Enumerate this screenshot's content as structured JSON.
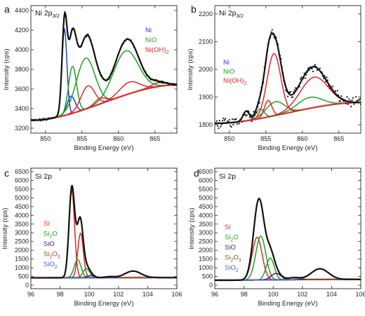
{
  "colors": {
    "Ni": "#1f3fbf",
    "NiO": "#22a022",
    "Ni(OH)2": "#e0262a",
    "Si": "#e0262a",
    "Si2O": "#22a022",
    "SiO": "#3a1c6b",
    "Si2O3": "#8b4a26",
    "SiO2": "#3a63c8",
    "envelope": "#111111",
    "background": "#f2a0a0",
    "data_points": "#111111"
  },
  "chart_data": [
    {
      "panel_label": "a",
      "title_base": "Ni 2p",
      "title_sub": "3/2",
      "type": "line",
      "xlabel": "Binding Energy (eV)",
      "ylabel": "Intensity (cps)",
      "xlim": [
        848,
        868
      ],
      "ylim": [
        3150,
        4450
      ],
      "x_ticks": [
        "850",
        "855",
        "860",
        "865"
      ],
      "y_ticks": [
        "3200",
        "3400",
        "3600",
        "3800",
        "4000",
        "4200",
        "4400"
      ],
      "legend": [
        "Ni",
        "NiO",
        "Ni(OH)2"
      ],
      "legend_labels": [
        {
          "text": "Ni",
          "sub": "",
          "color_key": "Ni"
        },
        {
          "text": "NiO",
          "sub": "",
          "color_key": "NiO"
        },
        {
          "text": "Ni(OH)",
          "sub": "2",
          "color_key": "Ni(OH)2"
        }
      ],
      "legend_position": "top-right",
      "background": {
        "start": 3280,
        "end": 3640
      },
      "components": [
        {
          "name": "Ni",
          "color_key": "Ni",
          "center": 852.6,
          "fwhm": 0.8,
          "height": 880
        },
        {
          "name": "Ni",
          "color_key": "Ni",
          "center": 853.5,
          "fwhm": 1.3,
          "height": 180
        },
        {
          "name": "NiO",
          "color_key": "NiO",
          "center": 853.7,
          "fwhm": 1.3,
          "height": 480
        },
        {
          "name": "NiO",
          "color_key": "NiO",
          "center": 855.5,
          "fwhm": 3.0,
          "height": 520
        },
        {
          "name": "NiO",
          "color_key": "NiO",
          "center": 861.0,
          "fwhm": 4.0,
          "height": 450
        },
        {
          "name": "Ni(OH)2",
          "color_key": "Ni(OH)2",
          "center": 855.8,
          "fwhm": 2.2,
          "height": 230
        },
        {
          "name": "Ni(OH)2",
          "color_key": "Ni(OH)2",
          "center": 857.5,
          "fwhm": 1.8,
          "height": 60
        },
        {
          "name": "Ni(OH)2",
          "color_key": "Ni(OH)2",
          "center": 861.5,
          "fwhm": 3.2,
          "height": 120
        },
        {
          "name": "Ni(OH)2",
          "color_key": "Ni(OH)2",
          "center": 865.5,
          "fwhm": 2.5,
          "height": 40
        }
      ],
      "data_points": [
        {
          "x": 849.0,
          "y": 3300
        },
        {
          "x": 850.0,
          "y": 3330
        },
        {
          "x": 851.0,
          "y": 3390
        },
        {
          "x": 852.0,
          "y": 3760
        },
        {
          "x": 852.6,
          "y": 4280
        },
        {
          "x": 853.3,
          "y": 3900
        },
        {
          "x": 854.0,
          "y": 4120
        },
        {
          "x": 854.5,
          "y": 4140
        },
        {
          "x": 855.0,
          "y": 4080
        },
        {
          "x": 856.0,
          "y": 4100
        },
        {
          "x": 857.0,
          "y": 3930
        },
        {
          "x": 858.0,
          "y": 3790
        },
        {
          "x": 859.0,
          "y": 3820
        },
        {
          "x": 860.0,
          "y": 3890
        },
        {
          "x": 861.0,
          "y": 3940
        },
        {
          "x": 862.0,
          "y": 3900
        },
        {
          "x": 863.0,
          "y": 3790
        },
        {
          "x": 864.0,
          "y": 3700
        },
        {
          "x": 865.0,
          "y": 3680
        },
        {
          "x": 866.0,
          "y": 3660
        },
        {
          "x": 867.5,
          "y": 3650
        }
      ],
      "noise": 10,
      "series_names_shown": true
    },
    {
      "panel_label": "b",
      "title_base": "Ni 2p",
      "title_sub": "3/2",
      "type": "line",
      "xlabel": "Binding Energy (eV)",
      "ylabel": "Intensity (cps)",
      "xlim": [
        848,
        868
      ],
      "ylim": [
        1770,
        2230
      ],
      "x_ticks": [
        "850",
        "855",
        "860",
        "865"
      ],
      "y_ticks": [
        "1800",
        "1900",
        "2000",
        "2100",
        "2200"
      ],
      "legend": [
        "Ni",
        "NiO",
        "Ni(OH)2"
      ],
      "legend_labels": [
        {
          "text": "Ni",
          "sub": "",
          "color_key": "Ni"
        },
        {
          "text": "NiO",
          "sub": "",
          "color_key": "NiO"
        },
        {
          "text": "Ni(OH)",
          "sub": "2",
          "color_key": "Ni(OH)2"
        }
      ],
      "legend_position": "middle-left",
      "background": {
        "start": 1805,
        "end": 1880
      },
      "components": [
        {
          "name": "Ni",
          "color_key": "Ni",
          "center": 852.3,
          "fwhm": 1.0,
          "height": 35
        },
        {
          "name": "NiO",
          "color_key": "NiO",
          "center": 854.2,
          "fwhm": 1.3,
          "height": 35
        },
        {
          "name": "NiO",
          "color_key": "NiO",
          "center": 856.3,
          "fwhm": 3.0,
          "height": 50
        },
        {
          "name": "NiO",
          "color_key": "NiO",
          "center": 861.0,
          "fwhm": 4.0,
          "height": 40
        },
        {
          "name": "Ni(OH)2",
          "color_key": "Ni(OH)2",
          "center": 855.3,
          "fwhm": 1.2,
          "height": 60
        },
        {
          "name": "Ni(OH)2",
          "color_key": "Ni(OH)2",
          "center": 856.1,
          "fwhm": 2.2,
          "height": 225
        },
        {
          "name": "Ni(OH)2",
          "color_key": "Ni(OH)2",
          "center": 861.6,
          "fwhm": 4.5,
          "height": 110
        }
      ],
      "data_points": [
        {
          "x": 849.0,
          "y": 1808
        },
        {
          "x": 850.0,
          "y": 1818
        },
        {
          "x": 851.0,
          "y": 1832
        },
        {
          "x": 852.0,
          "y": 1842
        },
        {
          "x": 853.0,
          "y": 1838
        },
        {
          "x": 854.0,
          "y": 1870
        },
        {
          "x": 855.0,
          "y": 1960
        },
        {
          "x": 855.5,
          "y": 2080
        },
        {
          "x": 856.0,
          "y": 2130
        },
        {
          "x": 856.8,
          "y": 2060
        },
        {
          "x": 857.5,
          "y": 1960
        },
        {
          "x": 858.5,
          "y": 1930
        },
        {
          "x": 859.5,
          "y": 1950
        },
        {
          "x": 860.5,
          "y": 1980
        },
        {
          "x": 861.5,
          "y": 1990
        },
        {
          "x": 862.5,
          "y": 1970
        },
        {
          "x": 863.5,
          "y": 1935
        },
        {
          "x": 864.5,
          "y": 1910
        },
        {
          "x": 865.5,
          "y": 1895
        },
        {
          "x": 866.5,
          "y": 1888
        },
        {
          "x": 867.5,
          "y": 1885
        }
      ],
      "noise": 14,
      "series_names_shown": true
    },
    {
      "panel_label": "c",
      "title_base": "Si 2p",
      "title_sub": "",
      "type": "line",
      "xlabel": "Binding Energy (eV)",
      "ylabel": "Intensity (cps)",
      "xlim": [
        96,
        106
      ],
      "ylim": [
        -200,
        6700
      ],
      "x_ticks": [
        "96",
        "98",
        "100",
        "102",
        "104",
        "106"
      ],
      "y_ticks": [
        "0",
        "500",
        "1000",
        "1500",
        "2000",
        "2500",
        "3000",
        "3500",
        "4000",
        "4500",
        "5000",
        "5500",
        "6000",
        "6500"
      ],
      "legend": [
        "Si",
        "Si2O",
        "SiO",
        "Si2O3",
        "SiO2"
      ],
      "legend_labels": [
        {
          "text": "Si",
          "sub": "",
          "rest": "",
          "color_key": "Si"
        },
        {
          "text": "Si",
          "sub": "2",
          "rest": "O",
          "color_key": "Si2O"
        },
        {
          "text": "SiO",
          "sub": "",
          "rest": "",
          "color_key": "SiO"
        },
        {
          "text": "Si",
          "sub": "2",
          "rest": "O",
          "sub2": "3",
          "color_key": "Si2O3"
        },
        {
          "text": "SiO",
          "sub": "2",
          "rest": "",
          "color_key": "SiO2"
        }
      ],
      "legend_position": "middle-left",
      "background": {
        "start": 420,
        "end": 430
      },
      "components": [
        {
          "name": "Si",
          "color_key": "Si",
          "center": 98.8,
          "fwhm": 0.45,
          "height": 5000
        },
        {
          "name": "Si",
          "color_key": "Si",
          "center": 99.4,
          "fwhm": 0.45,
          "height": 2550
        },
        {
          "name": "Si2O",
          "color_key": "Si2O",
          "center": 99.2,
          "fwhm": 0.55,
          "height": 1050
        },
        {
          "name": "Si2O",
          "color_key": "Si2O",
          "center": 99.8,
          "fwhm": 0.55,
          "height": 520
        },
        {
          "name": "SiO",
          "color_key": "SiO",
          "center": 100.1,
          "fwhm": 0.6,
          "height": 130
        },
        {
          "name": "Si2O3",
          "color_key": "Si2O3",
          "center": 101.4,
          "fwhm": 0.8,
          "height": 60
        },
        {
          "name": "SiO2",
          "color_key": "SiO2",
          "center": 103.0,
          "fwhm": 1.3,
          "height": 380
        }
      ],
      "data_points": [],
      "noise": 0,
      "series_names_shown": true
    },
    {
      "panel_label": "d",
      "title_base": "Si 2p",
      "title_sub": "",
      "type": "line",
      "xlabel": "Binding Energy (eV)",
      "ylabel": "Intensity (cps)",
      "xlim": [
        96,
        106
      ],
      "ylim": [
        -200,
        6700
      ],
      "x_ticks": [
        "96",
        "98",
        "100",
        "102",
        "104",
        "106"
      ],
      "y_ticks": [
        "0",
        "500",
        "1000",
        "1500",
        "2000",
        "2500",
        "3000",
        "3500",
        "4000",
        "4500",
        "5000",
        "5500",
        "6000",
        "6500"
      ],
      "legend": [
        "Si",
        "Si2O",
        "SiO",
        "Si2O3",
        "SiO2"
      ],
      "legend_labels": [
        {
          "text": "Si",
          "sub": "",
          "rest": "",
          "color_key": "Si"
        },
        {
          "text": "Si",
          "sub": "2",
          "rest": "O",
          "color_key": "Si2O"
        },
        {
          "text": "SiO",
          "sub": "",
          "rest": "",
          "color_key": "SiO"
        },
        {
          "text": "Si",
          "sub": "2",
          "rest": "O",
          "sub2": "3",
          "color_key": "Si2O3"
        },
        {
          "text": "SiO",
          "sub": "2",
          "rest": "",
          "color_key": "SiO2"
        }
      ],
      "legend_position": "middle-left",
      "background": {
        "start": 280,
        "end": 330
      },
      "components": [
        {
          "name": "Si",
          "color_key": "Si",
          "center": 98.9,
          "fwhm": 0.8,
          "height": 2450
        },
        {
          "name": "Si2O",
          "color_key": "Si2O",
          "center": 99.15,
          "fwhm": 0.8,
          "height": 2520
        },
        {
          "name": "Si2O",
          "color_key": "Si2O",
          "center": 99.8,
          "fwhm": 0.65,
          "height": 1250
        },
        {
          "name": "SiO",
          "color_key": "SiO",
          "center": 100.2,
          "fwhm": 0.8,
          "height": 380
        },
        {
          "name": "Si2O3",
          "color_key": "Si2O3",
          "center": 101.4,
          "fwhm": 1.0,
          "height": 120
        },
        {
          "name": "SiO2",
          "color_key": "SiO2",
          "center": 103.2,
          "fwhm": 1.4,
          "height": 620
        }
      ],
      "data_points": [],
      "noise": 0,
      "series_names_shown": true
    }
  ]
}
